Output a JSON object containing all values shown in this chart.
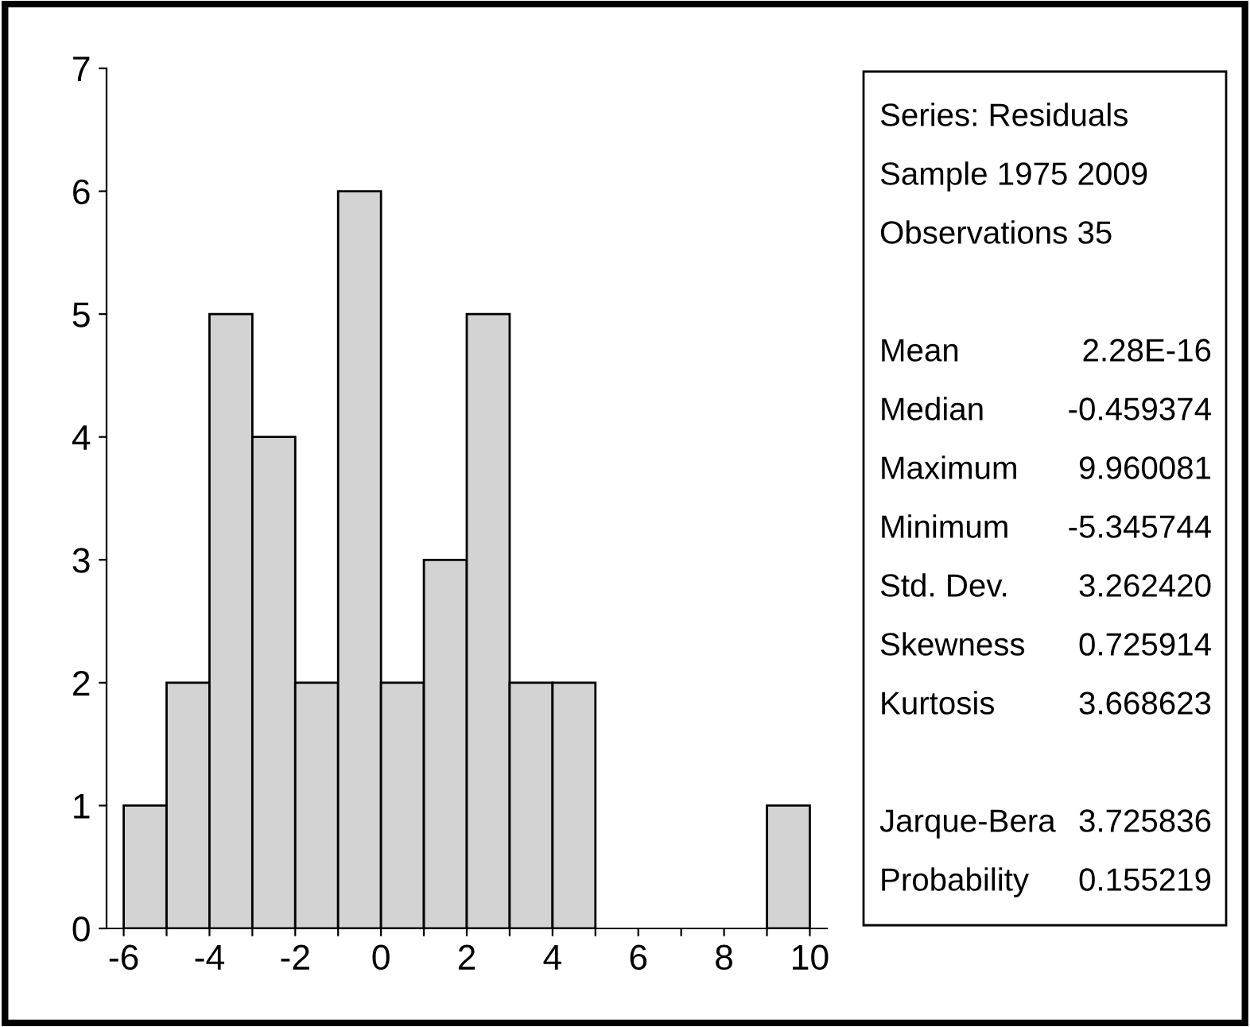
{
  "chart_data": {
    "type": "histogram",
    "bins": [
      -6,
      -5,
      -4,
      -3,
      -2,
      -1,
      0,
      1,
      2,
      3,
      4,
      5,
      6,
      7,
      8,
      9,
      10
    ],
    "values": [
      1,
      2,
      5,
      4,
      2,
      6,
      2,
      3,
      5,
      2,
      2,
      0,
      0,
      0,
      0,
      1
    ],
    "color": "#d3d3d3",
    "xlim": [
      -6.4,
      10.4
    ],
    "xticks": [
      -6,
      {
        "value": -5,
        "label": null
      },
      -4,
      {
        "value": -3,
        "label": null
      },
      -2,
      {
        "value": -1,
        "label": null
      },
      0,
      {
        "value": 1,
        "label": null
      },
      2,
      {
        "value": 3,
        "label": null
      },
      4,
      {
        "value": 5,
        "label": null
      },
      6,
      {
        "value": 7,
        "label": null
      },
      8,
      {
        "value": 9,
        "label": null
      },
      10
    ],
    "ylim": [
      0,
      7
    ],
    "yticks": [
      0,
      1,
      2,
      3,
      4,
      5,
      6,
      7
    ],
    "grid": false,
    "annotations": [
      "Series: Residuals",
      "Sample 1975 2009",
      "Observations 35",
      "Mean",
      "2.28E-16",
      "Median",
      "-0.459374",
      "Maximum",
      "9.960081",
      "Minimum",
      "-5.345744",
      "Std. Dev.",
      "3.262420",
      "Skewness",
      "0.725914",
      "Kurtosis",
      "3.668623",
      "Jarque-Bera",
      "3.725836",
      "Probability",
      "0.155219"
    ]
  }
}
